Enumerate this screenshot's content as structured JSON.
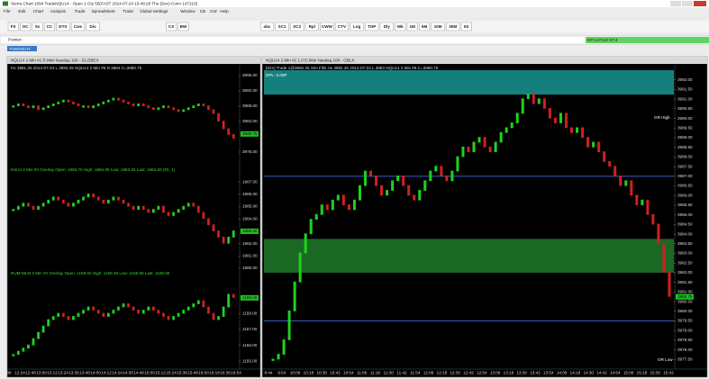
{
  "window_title": "Sierra Chart 1094 TradeNQU14 - Open 1 Cty 55(FAST 2014-07-24 15:48:28 Thu (Dev) Conn 147210)",
  "menu": [
    "File",
    "Edit",
    "Chart",
    "Analysis",
    "Trade",
    "Spreadsheet",
    "Trade",
    "Global Settings",
    "Window",
    "CB",
    "CW",
    "Help"
  ],
  "toolbar": [
    "FS",
    "OC",
    "Sv",
    "CC",
    "DTS",
    "Cws",
    "Dis",
    "CS",
    "BW",
    "abc",
    "SC1",
    "SC2",
    "Rpl",
    "CWW",
    "CTV",
    "Log",
    "TOP",
    "Dly",
    "Wk",
    "1M",
    "5M",
    "10M",
    "30M",
    "5S"
  ],
  "pointer_label": "Pointer:",
  "status": "DP:147210 ST:4",
  "tab": "TradeNQU14",
  "left_chart": {
    "title": "NQU14 2 Min #1 E-Mini Nasdaq 100 - GLOBEX",
    "info": "Hx 3981.25 2014-07-24 L 3983.25 NQU14 2 Min #5 N 3984 C=3980.75",
    "times": [
      "08",
      "12:24",
      "12:48",
      "13:00",
      "13:12",
      "13:24",
      "13:36",
      "13:48",
      "14:00",
      "14:12",
      "14:24",
      "14:36",
      "14:48",
      "15:00",
      "15:12",
      "15:24",
      "15:36",
      "15:48",
      "16:00",
      "16:18",
      "16:36",
      "16:54"
    ],
    "panels": [
      {
        "type": "bar",
        "ylim": [
          3973.4,
          3997.4
        ],
        "yticks": [
          {
            "value": 3996,
            "label": "3996.00"
          },
          {
            "value": 3992,
            "label": "3992.00"
          },
          {
            "value": 3988,
            "label": "3988.00"
          },
          {
            "value": 3984,
            "label": "3984.00"
          },
          {
            "value": 3976,
            "label": "3976.00"
          }
        ],
        "last": 3980.75,
        "values": [
          3988,
          3988.5,
          3988,
          3987.5,
          3988,
          3987,
          3987.5,
          3988,
          3988.5,
          3989,
          3989.5,
          3989,
          3988.5,
          3988,
          3988,
          3987.5,
          3988,
          3988.5,
          3989,
          3989.5,
          3990,
          3989.5,
          3989,
          3988.5,
          3988,
          3988.5,
          3988,
          3987.5,
          3987,
          3987.5,
          3988,
          3987.5,
          3987,
          3986.5,
          3987,
          3987.5,
          3988,
          3988.5,
          3988,
          3987,
          3986,
          3984,
          3982,
          3980.5,
          3979.5
        ]
      },
      {
        "type": "bar",
        "label": "ESU4 2 Min #2 Overlay Open: 1983.75 High: 1984.00 Low: 1983.25 Last: 1983.00 (#2, 1)",
        "ylim": [
          1980,
          1988.25
        ],
        "yticks": [
          {
            "value": 1987,
            "label": "1987.00"
          },
          {
            "value": 1986,
            "label": "1986.00"
          },
          {
            "value": 1985,
            "label": "1985.00"
          },
          {
            "value": 1984,
            "label": "1984.00"
          },
          {
            "value": 1982,
            "label": "1982.00"
          },
          {
            "value": 1981,
            "label": "1981.00"
          },
          {
            "value": 1980,
            "label": "1980.00"
          }
        ],
        "last": {
          "value": 1983,
          "label": "1983.00"
        },
        "values": [
          1984.75,
          1985,
          1985.25,
          1985,
          1984.75,
          1985,
          1985.25,
          1985.5,
          1985.75,
          1985.5,
          1985.25,
          1985,
          1985.25,
          1985.5,
          1985.75,
          1986,
          1985.75,
          1985.5,
          1985.25,
          1985.5,
          1985.75,
          1985.5,
          1985.25,
          1985,
          1984.75,
          1985,
          1984.75,
          1984.5,
          1984.75,
          1985,
          1984.5,
          1984.25,
          1984.5,
          1984.75,
          1985,
          1985.25,
          1985,
          1984.5,
          1984,
          1983.5,
          1983,
          1982.5,
          1982,
          1982.5,
          1983
        ]
      },
      {
        "type": "bar",
        "label": "RUM-MLM 2 Min #4 Overlay Open: 1159.00 High: 1159.00 Low: 1158.80 Last: 1159.00",
        "ylim": [
          1154.5,
          1160.75
        ],
        "yticks": [
          {
            "value": 1158,
            "label": "1158.00"
          },
          {
            "value": 1157,
            "label": "1157.00"
          },
          {
            "value": 1156,
            "label": "1156.00"
          },
          {
            "value": 1155,
            "label": "1155.00"
          }
        ],
        "last": {
          "value": 1159,
          "label": "1159.00"
        },
        "values": [
          1155.4,
          1155.6,
          1155.8,
          1156,
          1156.4,
          1156.8,
          1157.2,
          1157.6,
          1157.8,
          1158,
          1157.8,
          1157.6,
          1157.8,
          1158,
          1158.2,
          1158.4,
          1158.2,
          1158,
          1157.8,
          1158,
          1158.2,
          1158.4,
          1158.6,
          1158.4,
          1158.2,
          1158,
          1158.2,
          1158.4,
          1158.2,
          1158,
          1157.8,
          1157.6,
          1157.8,
          1158,
          1158.2,
          1158.4,
          1158.6,
          1158.8,
          1158.4,
          1158,
          1157.6,
          1157.8,
          1158.4,
          1159.2,
          1159
        ]
      }
    ]
  },
  "right_chart": {
    "type": "bar",
    "title": "NQU14 2 Min #1 1.0 E-Mini Nasdaq 100 - GBLX",
    "info": "[Sim] Trade 1@3982.25 Sim Fills Hx 3982.25 2014-07-24 L 3983 NQU14 2 Min #5 C=3980.75",
    "dpl": "DPL: 0.00P",
    "or_high": "OR High",
    "or_low": "OR Low",
    "ylim": [
      3977,
      3992.5
    ],
    "yticks": [
      {
        "value": 3992,
        "label": "3992.00"
      },
      {
        "value": 3991.5,
        "label": "3991.50"
      },
      {
        "value": 3991,
        "label": "3991.00"
      },
      {
        "value": 3990.5,
        "label": "3990.50"
      },
      {
        "value": 3990,
        "label": "3990.00"
      },
      {
        "value": 3989.5,
        "label": "3989.50"
      },
      {
        "value": 3989,
        "label": "3989.00"
      },
      {
        "value": 3988.5,
        "label": "3988.50"
      },
      {
        "value": 3988,
        "label": "3988.00"
      },
      {
        "value": 3987.5,
        "label": "3987.50"
      },
      {
        "value": 3987,
        "label": "3987.00"
      },
      {
        "value": 3986.5,
        "label": "3986.50"
      },
      {
        "value": 3986,
        "label": "3986.00"
      },
      {
        "value": 3985.5,
        "label": "3985.50"
      },
      {
        "value": 3985,
        "label": "3985.00"
      },
      {
        "value": 3984.5,
        "label": "3984.50"
      },
      {
        "value": 3984,
        "label": "3984.00"
      },
      {
        "value": 3983.5,
        "label": "3983.50"
      },
      {
        "value": 3983,
        "label": "3983.00"
      },
      {
        "value": 3982.5,
        "label": "3982.50"
      },
      {
        "value": 3982,
        "label": "3982.00"
      },
      {
        "value": 3981.5,
        "label": "3981.50"
      },
      {
        "value": 3981,
        "label": "3981.00"
      },
      {
        "value": 3980.5,
        "label": "3980.50"
      },
      {
        "value": 3980,
        "label": "3980.00"
      },
      {
        "value": 3979.5,
        "label": "3979.50"
      },
      {
        "value": 3979,
        "label": "3979.00"
      },
      {
        "value": 3978.5,
        "label": "3978.50"
      },
      {
        "value": 3978,
        "label": "3978.00"
      },
      {
        "value": 3977.5,
        "label": "3977.50"
      }
    ],
    "levels": [
      3987,
      3979.5
    ],
    "zone": [
      3982,
      3983.75
    ],
    "last": 3980.75,
    "times": [
      "8:44",
      "9:54",
      "10:06",
      "10:18",
      "10:30",
      "10:42",
      "10:54",
      "11:06",
      "11:18",
      "11:30",
      "11:42",
      "11:54",
      "12:06",
      "12:18",
      "12:30",
      "12:42",
      "12:54",
      "13:06",
      "13:18",
      "13:30",
      "13:42",
      "13:54",
      "14:06",
      "14:18",
      "14:30",
      "14:42",
      "14:54",
      "15:06",
      "15:18",
      "15:30",
      "15:42"
    ],
    "values": [
      3977.5,
      3977.75,
      3978.5,
      3980,
      3981.5,
      3983,
      3984,
      3984.75,
      3985,
      3985.5,
      3985.25,
      3985.75,
      3986,
      3985.5,
      3985.25,
      3985.75,
      3986.5,
      3987.25,
      3987,
      3986.5,
      3986,
      3986.25,
      3986.75,
      3987,
      3986.5,
      3986,
      3985.75,
      3986.25,
      3986.75,
      3987.25,
      3987.5,
      3987,
      3986.75,
      3987.25,
      3988,
      3988.5,
      3988.25,
      3988.75,
      3989,
      3988.5,
      3988.25,
      3988.75,
      3989.25,
      3989.5,
      3989.75,
      3990.25,
      3991,
      3991.25,
      3990.75,
      3991,
      3990.5,
      3990,
      3989.75,
      3990.25,
      3989.5,
      3989.25,
      3989.5,
      3989,
      3988.5,
      3988.75,
      3988.25,
      3987.75,
      3987.5,
      3987,
      3986.5,
      3986.75,
      3986,
      3985.5,
      3985.75,
      3985,
      3984.5,
      3983.5,
      3982,
      3980.75
    ]
  }
}
